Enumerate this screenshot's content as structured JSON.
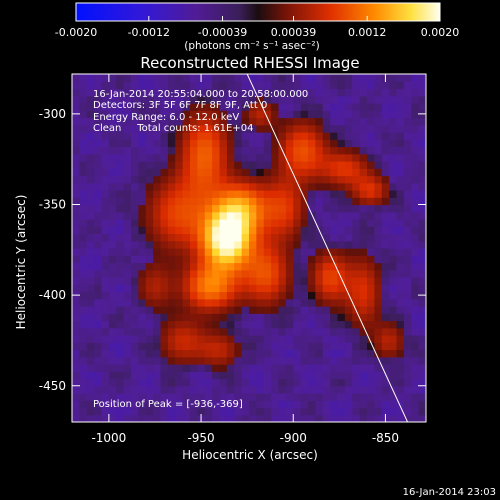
{
  "chart_data": {
    "type": "heatmap",
    "title": "Reconstructed RHESSI Image",
    "xlabel": "Heliocentric X (arcsec)",
    "ylabel": "Heliocentric Y (arcsec)",
    "xlim": [
      -1020,
      -828
    ],
    "ylim": [
      -470,
      -278
    ],
    "xticks": [
      -1000,
      -950,
      -900,
      -850
    ],
    "xtick_labels": [
      "-1000",
      "-950",
      "-900",
      "-850"
    ],
    "yticks": [
      -450,
      -400,
      -350,
      -300
    ],
    "ytick_labels": [
      "-450",
      "-400",
      "-350",
      "-300"
    ],
    "colorbar": {
      "min": -0.002,
      "max": 0.002,
      "ticks": [
        -0.002,
        -0.0012,
        -0.00039,
        0.00039,
        0.0012,
        0.002
      ],
      "tick_labels": [
        "-0.0020",
        "-0.0012",
        "-0.00039",
        "0.00039",
        "0.0012",
        "0.0020"
      ],
      "units": "(photons cm⁻² s⁻¹ asec⁻²)"
    },
    "annotations": [
      "16-Jan-2014 20:55:04.000 to 20:58:00.000",
      "Detectors: 3F 5F 6F 7F 8F 9F, Att 0",
      "Energy Range: 6.0 - 12.0 keV",
      "Clean     Total counts: 1.61E+04"
    ],
    "peak_text": "Position of Peak = [-936,-369]",
    "peak_position": [
      -936,
      -369
    ],
    "limb_line": [
      [
        -925,
        -278
      ],
      [
        -838,
        -470
      ]
    ],
    "sources": [
      {
        "x": -936,
        "y": -369,
        "sx": 9,
        "sy": 11,
        "amp": 1.0
      },
      {
        "x": -928,
        "y": -352,
        "sx": 10,
        "sy": 10,
        "amp": 0.55
      },
      {
        "x": -945,
        "y": -395,
        "sx": 10,
        "sy": 9,
        "amp": 0.5
      },
      {
        "x": -948,
        "y": -322,
        "sx": 9,
        "sy": 16,
        "amp": 0.42
      },
      {
        "x": -962,
        "y": -355,
        "sx": 12,
        "sy": 14,
        "amp": 0.35
      },
      {
        "x": -915,
        "y": -388,
        "sx": 9,
        "sy": 12,
        "amp": 0.38
      },
      {
        "x": -905,
        "y": -352,
        "sx": 8,
        "sy": 12,
        "amp": 0.3
      },
      {
        "x": -895,
        "y": -320,
        "sx": 9,
        "sy": 11,
        "amp": 0.38
      },
      {
        "x": -872,
        "y": -330,
        "sx": 9,
        "sy": 7,
        "amp": 0.3
      },
      {
        "x": -858,
        "y": -342,
        "sx": 7,
        "sy": 6,
        "amp": 0.28
      },
      {
        "x": -880,
        "y": -390,
        "sx": 7,
        "sy": 10,
        "amp": 0.34
      },
      {
        "x": -862,
        "y": -398,
        "sx": 7,
        "sy": 14,
        "amp": 0.28
      },
      {
        "x": -848,
        "y": -425,
        "sx": 6,
        "sy": 7,
        "amp": 0.22
      },
      {
        "x": -960,
        "y": -425,
        "sx": 9,
        "sy": 9,
        "amp": 0.25
      },
      {
        "x": -940,
        "y": -430,
        "sx": 8,
        "sy": 7,
        "amp": 0.22
      },
      {
        "x": -975,
        "y": -395,
        "sx": 7,
        "sy": 9,
        "amp": 0.2
      },
      {
        "x": -918,
        "y": -300,
        "sx": 6,
        "sy": 6,
        "amp": 0.22
      }
    ]
  },
  "footer_timestamp": "16-Jan-2014 23:03"
}
